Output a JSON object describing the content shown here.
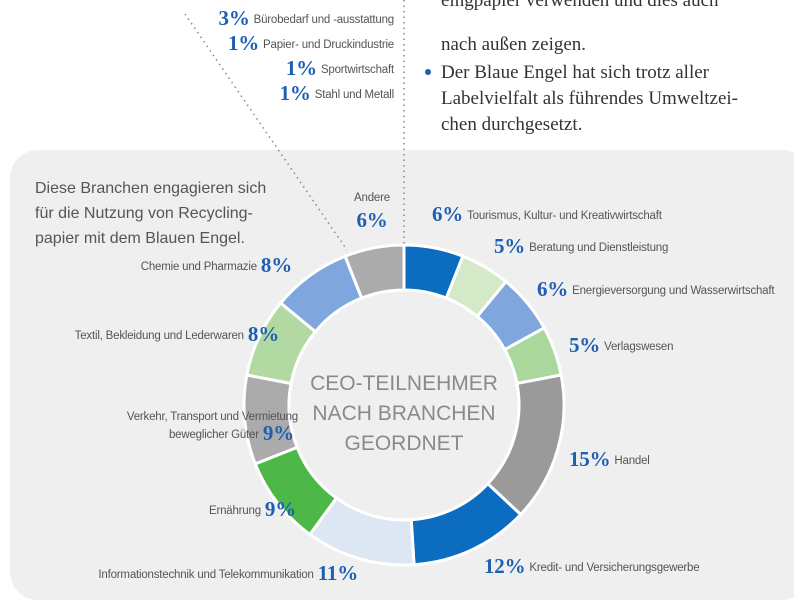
{
  "header_text": {
    "lines": [
      "eingpapier verwenden und dies auch",
      "nach außen zeigen."
    ],
    "bullet": [
      "Der Blaue Engel hat sich trotz aller",
      "Labelvielfalt als führendes Umweltzei-",
      "chen durchgesetzt."
    ]
  },
  "chart_data": {
    "type": "donut",
    "intro": [
      "Diese Branchen engagieren sich",
      "für die Nutzung von Recycling-",
      "papier mit dem Blauen Engel."
    ],
    "center_text": [
      "CEO-TEILNEHMER",
      "NACH BRANCHEN",
      "GEORDNET"
    ],
    "categories": [
      "Tourismus, Kultur- und Kreativwirtschaft",
      "Beratung und Dienstleistung",
      "Energieversorgung und Wasserwirtschaft",
      "Verlagswesen",
      "Handel",
      "Kredit- und Versicherungsgewerbe",
      "Informationstechnik und Telekommunikation",
      "Ernährung",
      "Verkehr, Transport und Vermietung beweglicher Güter",
      "Textil, Bekleidung und Lederwaren",
      "Chemie und Pharmazie",
      "Andere"
    ],
    "values": [
      6,
      5,
      6,
      5,
      15,
      12,
      11,
      9,
      9,
      8,
      8,
      6
    ],
    "value_labels": [
      "6%",
      "5%",
      "6%",
      "5%",
      "15%",
      "12%",
      "11%",
      "9%",
      "9%",
      "8%",
      "8%",
      "6%"
    ],
    "colors": [
      "#0b6cc0",
      "#d3e9c8",
      "#7fa7dd",
      "#aad79b",
      "#9a9a9a",
      "#0b6cc0",
      "#dde6f3",
      "#4db848",
      "#ababab",
      "#b1d9a1",
      "#7fa7dd",
      "#ababab"
    ],
    "other_breakdown": {
      "categories": [
        "Bürobedarf und -ausstattung",
        "Papier- und Druckindustrie",
        "Sportwirtschaft",
        "Stahl und Metall"
      ],
      "values": [
        3,
        1,
        1,
        1
      ],
      "value_labels": [
        "3%",
        "1%",
        "1%",
        "1%"
      ]
    }
  }
}
